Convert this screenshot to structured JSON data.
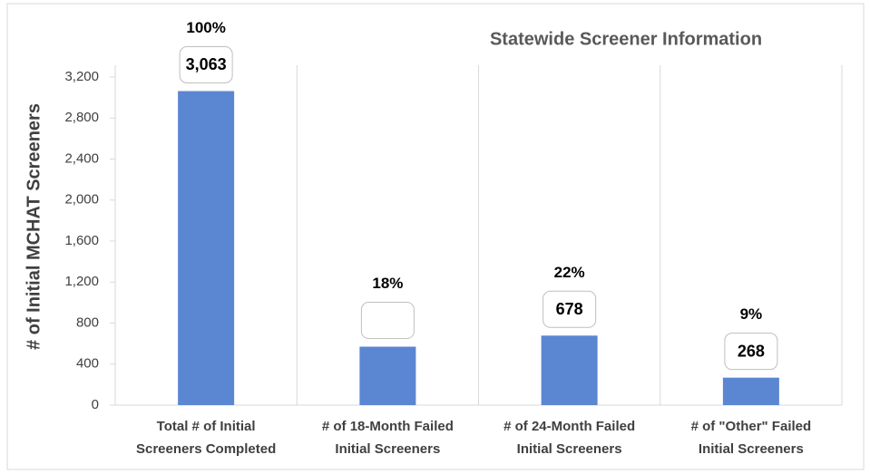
{
  "chart_data": {
    "type": "bar",
    "title": "Statewide Screener Information",
    "y_label": "# of Initial MCHAT Screeners",
    "categories": [
      [
        "Total # of Initial",
        "Screeners Completed"
      ],
      [
        "# of 18-Month Failed",
        "Initial Screeners"
      ],
      [
        "# of 24-Month Failed",
        "Initial Screeners"
      ],
      [
        "# of \"Other\"  Failed",
        "Initial Screeners"
      ]
    ],
    "values": [
      3063,
      570,
      678,
      268
    ],
    "value_labels": [
      "3,063",
      null,
      "678",
      "268"
    ],
    "percent_labels": [
      "100%",
      "18%",
      "22%",
      "9%"
    ],
    "color": "#5b86d2",
    "ylim": [
      0,
      3200
    ],
    "yticks": [
      0,
      400,
      800,
      {
        "value": 1200,
        "label": "1,200"
      },
      {
        "value": 1600,
        "label": "1,600"
      },
      {
        "value": 2000,
        "label": "2,000"
      },
      {
        "value": 2400,
        "label": "2,400"
      },
      {
        "value": 2800,
        "label": "2,800"
      },
      {
        "value": 3200,
        "label": "3,200"
      }
    ]
  }
}
